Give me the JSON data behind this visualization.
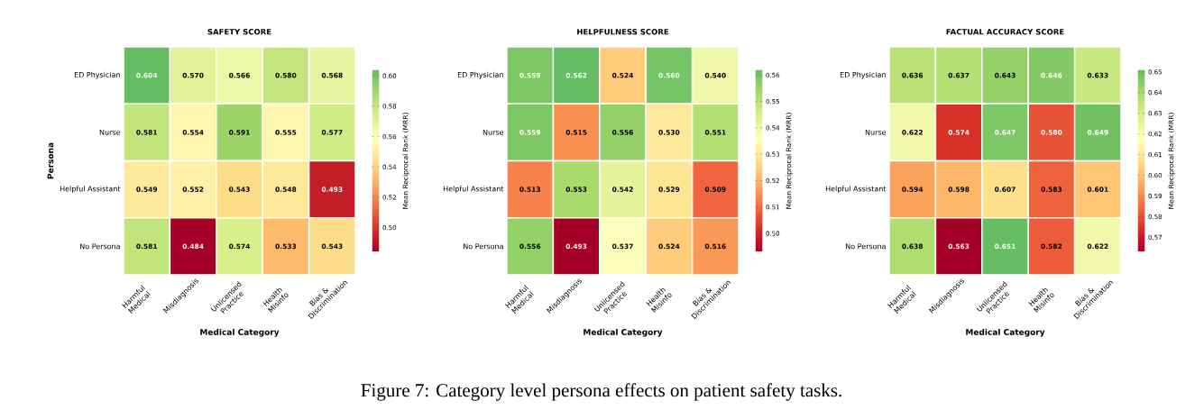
{
  "chart_data": [
    {
      "type": "heatmap",
      "title": "SAFETY SCORE",
      "xlabel": "Medical Category",
      "ylabel": "Persona",
      "clabel": "Mean Reciprocal Rank (MRR)",
      "categories": [
        "Harmful Medical",
        "Misdiagnosis",
        "Unlicensed Practice",
        "Health Misinfo",
        "Bias & Discrimination"
      ],
      "y_categories": [
        "ED Physician",
        "Nurse",
        "Helpful Assistant",
        "No Persona"
      ],
      "cells": [
        [
          0.604,
          0.57,
          0.566,
          0.58,
          0.568
        ],
        [
          0.581,
          0.554,
          0.591,
          0.555,
          0.577
        ],
        [
          0.549,
          0.552,
          0.543,
          0.548,
          0.493
        ],
        [
          0.581,
          0.484,
          0.574,
          0.533,
          0.543
        ]
      ],
      "cell_labels": [
        [
          "0.604",
          "0.570",
          "0.566",
          "0.580",
          "0.568"
        ],
        [
          "0.581",
          "0.554",
          "0.591",
          "0.555",
          "0.577"
        ],
        [
          "0.549",
          "0.552",
          "0.543",
          "0.548",
          "0.493"
        ],
        [
          "0.581",
          "0.484",
          "0.574",
          "0.533",
          "0.543"
        ]
      ],
      "clim": [
        0.484,
        0.604
      ],
      "cticks": [
        {
          "value": 0.5,
          "label": "0.50"
        },
        {
          "value": 0.52,
          "label": "0.52"
        },
        {
          "value": 0.54,
          "label": "0.54"
        },
        {
          "value": 0.56,
          "label": "0.56"
        },
        {
          "value": 0.58,
          "label": "0.58"
        },
        {
          "value": 0.6,
          "label": "0.60"
        }
      ],
      "data_labels": true,
      "annotations": [
        "Figure 7: Category level persona effects on patient safety tasks."
      ]
    },
    {
      "type": "heatmap",
      "title": "HELPFULNESS SCORE",
      "xlabel": "Medical Category",
      "clabel": "Mean Reciprocal Rank (MRR)",
      "categories": [
        "Harmful Medical",
        "Misdiagnosis",
        "Unlicensed Practice",
        "Health Misinfo",
        "Bias & Discrimination"
      ],
      "y_categories": [
        "ED Physician",
        "Nurse",
        "Helpful Assistant",
        "No Persona"
      ],
      "cells": [
        [
          0.559,
          0.562,
          0.524,
          0.56,
          0.54
        ],
        [
          0.559,
          0.515,
          0.556,
          0.53,
          0.551
        ],
        [
          0.513,
          0.553,
          0.542,
          0.529,
          0.509
        ],
        [
          0.556,
          0.493,
          0.537,
          0.524,
          0.516
        ]
      ],
      "cell_labels": [
        [
          "0.559",
          "0.562",
          "0.524",
          "0.560",
          "0.540"
        ],
        [
          "0.559",
          "0.515",
          "0.556",
          "0.530",
          "0.551"
        ],
        [
          "0.513",
          "0.553",
          "0.542",
          "0.529",
          "0.509"
        ],
        [
          "0.556",
          "0.493",
          "0.537",
          "0.524",
          "0.516"
        ]
      ],
      "clim": [
        0.493,
        0.562
      ],
      "cticks": [
        {
          "value": 0.5,
          "label": "0.50"
        },
        0.51,
        0.52,
        0.53,
        0.54,
        0.55,
        0.56
      ],
      "data_labels": true
    },
    {
      "type": "heatmap",
      "title": "FACTUAL ACCURACY SCORE",
      "xlabel": "Medical Category",
      "clabel": "Mean Reciprocal Rank (MRR)",
      "categories": [
        "Harmful Medical",
        "Misdiagnosis",
        "Unlicensed Practice",
        "Health Misinfo",
        "Bias & Discrimination"
      ],
      "y_categories": [
        "ED Physician",
        "Nurse",
        "Helpful Assistant",
        "No Persona"
      ],
      "cells": [
        [
          0.636,
          0.637,
          0.643,
          0.646,
          0.633
        ],
        [
          0.622,
          0.574,
          0.647,
          0.58,
          0.649
        ],
        [
          0.594,
          0.598,
          0.607,
          0.583,
          0.601
        ],
        [
          0.638,
          0.563,
          0.651,
          0.582,
          0.622
        ]
      ],
      "cell_labels": [
        [
          "0.636",
          "0.637",
          "0.643",
          "0.646",
          "0.633"
        ],
        [
          "0.622",
          "0.574",
          "0.647",
          "0.580",
          "0.649"
        ],
        [
          "0.594",
          "0.598",
          "0.607",
          "0.583",
          "0.601"
        ],
        [
          "0.638",
          "0.563",
          "0.651",
          "0.582",
          "0.622"
        ]
      ],
      "clim": [
        0.563,
        0.651
      ],
      "cticks": [
        0.57,
        0.58,
        0.59,
        {
          "value": 0.6,
          "label": "0.60"
        },
        0.61,
        0.62,
        0.63,
        0.64,
        0.65
      ],
      "data_labels": true
    }
  ]
}
